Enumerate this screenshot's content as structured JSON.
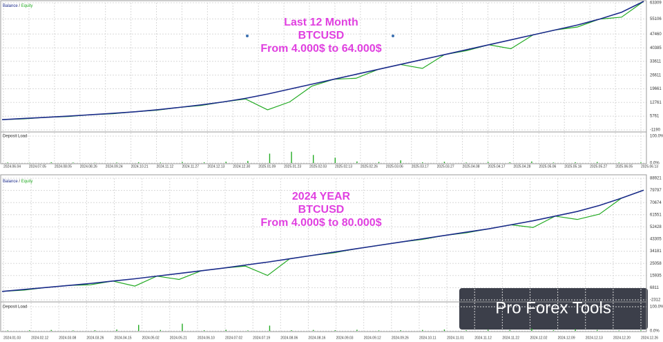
{
  "chart_data": [
    {
      "type": "line",
      "annotations": [
        "Last 12 Month",
        "BTCUSD",
        "From 4.000$ to 64.000$"
      ],
      "series": [
        {
          "name": "Balance",
          "color": "#1a2a8a",
          "values": [
            4000,
            4600,
            5200,
            5800,
            6500,
            7200,
            8000,
            9000,
            10200,
            11500,
            13000,
            14800,
            17000,
            19500,
            22000,
            24500,
            27000,
            29500,
            32000,
            34500,
            37000,
            39500,
            42000,
            44500,
            47000,
            49500,
            52000,
            55000,
            58500,
            64000
          ]
        },
        {
          "name": "Equity",
          "color": "#22aa22",
          "values": [
            4000,
            4400,
            5200,
            5600,
            6500,
            7000,
            8000,
            8800,
            10200,
            11200,
            13000,
            14500,
            9000,
            13000,
            21000,
            24500,
            25000,
            29500,
            32000,
            30000,
            37000,
            39000,
            42000,
            40000,
            47000,
            49500,
            51000,
            55000,
            56000,
            64000
          ]
        }
      ],
      "ylim": [
        -1190,
        63309
      ],
      "yticks": [
        -1190,
        5761,
        12761,
        19661,
        26611,
        33611,
        40385,
        47460,
        55106,
        63309
      ],
      "xticks": [
        "2024.06.04",
        "2024.07.05",
        "2024.08.05",
        "2024.08.26",
        "2024.09.24",
        "2024.10.21",
        "2024.11.12",
        "2024.11.27",
        "2024.12.13",
        "2024.12.30",
        "2025.01.09",
        "2025.01.23",
        "2025.02.03",
        "2025.02.13",
        "2025.02.26",
        "2025.03.06",
        "2025.03.17",
        "2025.03.27",
        "2025.04.08",
        "2025.04.17",
        "2025.04.28",
        "2025.05.06",
        "2025.05.16",
        "2025.05.27",
        "2025.06.05",
        "2025.06.13"
      ],
      "grid": true,
      "deposit_load": {
        "type": "bar",
        "title": "Deposit Load",
        "color": "#22aa22",
        "values": [
          2,
          1,
          3,
          2,
          1,
          2,
          3,
          2,
          4,
          3,
          5,
          8,
          35,
          42,
          30,
          20,
          6,
          4,
          10,
          3,
          5,
          2,
          4,
          3,
          6,
          2,
          3,
          4,
          2,
          3
        ],
        "ylim": [
          0,
          100
        ],
        "yticks": [
          {
            "value": 0,
            "label": "0.0%"
          },
          {
            "value": 100,
            "label": "100.0%"
          }
        ]
      }
    },
    {
      "type": "line",
      "annotations": [
        "2024 YEAR",
        "BTCUSD",
        "From 4.000$ to 80.000$"
      ],
      "series": [
        {
          "name": "Balance",
          "color": "#1a2a8a",
          "values": [
            4000,
            5500,
            7000,
            8500,
            10000,
            11800,
            13500,
            15500,
            17500,
            19500,
            21500,
            23800,
            26000,
            28500,
            31000,
            33500,
            36000,
            38500,
            41000,
            43500,
            46000,
            48500,
            51000,
            54000,
            57000,
            60500,
            64000,
            68500,
            74000,
            80000
          ]
        },
        {
          "name": "Equity",
          "color": "#22aa22",
          "values": [
            4000,
            5000,
            7000,
            8500,
            9000,
            11800,
            8000,
            15500,
            13000,
            19500,
            21500,
            23000,
            16000,
            28500,
            31000,
            33000,
            36000,
            38500,
            41000,
            43000,
            46000,
            48000,
            51000,
            54000,
            52000,
            60500,
            58000,
            62000,
            74000,
            80000
          ]
        }
      ],
      "ylim": [
        -2312,
        88921
      ],
      "yticks": [
        -2312,
        6811,
        15935,
        25058,
        34181,
        43305,
        52428,
        61551,
        70674,
        79797,
        88921
      ],
      "xticks": [
        "2024.01.03",
        "2024.02.12",
        "2024.03.08",
        "2024.03.26",
        "2024.04.15",
        "2024.05.02",
        "2024.05.21",
        "2024.06.10",
        "2024.07.02",
        "2024.07.19",
        "2024.08.06",
        "2024.08.16",
        "2024.09.03",
        "2024.09.12",
        "2024.09.26",
        "2024.10.11",
        "2024.11.01",
        "2024.11.12",
        "2024.11.22",
        "2024.12.02",
        "2024.12.09",
        "2024.12.13",
        "2024.12.20",
        "2024.12.26"
      ],
      "grid": true,
      "deposit_load": {
        "type": "bar",
        "title": "Deposit Load",
        "color": "#22aa22",
        "values": [
          2,
          3,
          4,
          2,
          3,
          6,
          25,
          4,
          30,
          3,
          5,
          2,
          22,
          3,
          4,
          3,
          5,
          2,
          3,
          4,
          6,
          3,
          5,
          4,
          10,
          3,
          7,
          4,
          2,
          3
        ],
        "ylim": [
          0,
          100
        ],
        "yticks": [
          {
            "value": 0,
            "label": "0.0%"
          },
          {
            "value": 100,
            "label": "100.0%"
          }
        ]
      }
    }
  ],
  "watermark": "Pro Forex Tools"
}
